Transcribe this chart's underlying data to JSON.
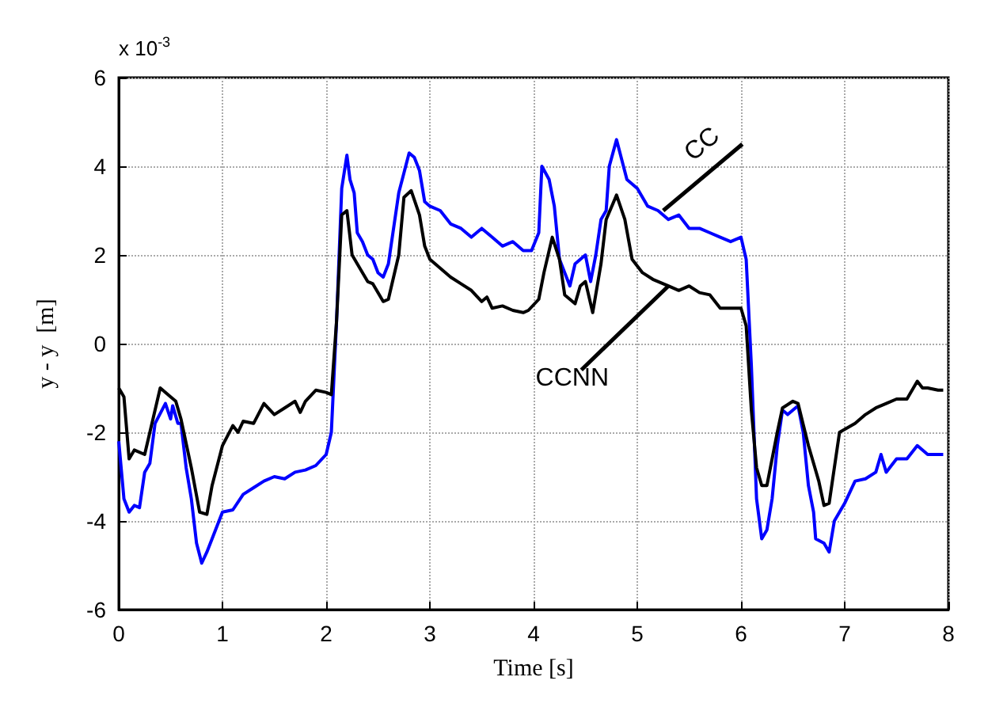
{
  "chart_data": {
    "type": "line",
    "xlabel": "Time [s]",
    "ylabel": "y - y  [m]",
    "xlim": [
      0,
      8
    ],
    "xticks": [
      0,
      1,
      2,
      3,
      4,
      5,
      6,
      7,
      8
    ],
    "ylim": [
      -6,
      6
    ],
    "yticks": [
      -6,
      -4,
      -2,
      0,
      2,
      4,
      6
    ],
    "grid": true,
    "marker": "none",
    "line_style": "solid",
    "annotations": [
      "x 10$^{-3}$",
      {
        "text": "CC",
        "x": 5.25,
        "y": 3.0
      },
      {
        "text": "CCNN",
        "x": 5.3,
        "y": 1.3
      }
    ],
    "series": [
      {
        "color": "#0000ff",
        "x": [
          0,
          0.05,
          0.1,
          0.15,
          0.2,
          0.25,
          0.3,
          0.35,
          0.45,
          0.5,
          0.52,
          0.57,
          0.6,
          0.65,
          0.7,
          0.75,
          0.8,
          0.85,
          0.9,
          1.0,
          1.1,
          1.2,
          1.3,
          1.4,
          1.5,
          1.6,
          1.7,
          1.8,
          1.9,
          2.0,
          2.05,
          2.1,
          2.15,
          2.2,
          2.23,
          2.27,
          2.3,
          2.35,
          2.4,
          2.45,
          2.5,
          2.55,
          2.6,
          2.7,
          2.8,
          2.85,
          2.9,
          2.95,
          3.0,
          3.1,
          3.2,
          3.3,
          3.4,
          3.5,
          3.6,
          3.7,
          3.8,
          3.9,
          3.98,
          4.05,
          4.08,
          4.15,
          4.2,
          4.25,
          4.35,
          4.4,
          4.5,
          4.55,
          4.6,
          4.65,
          4.7,
          4.73,
          4.8,
          4.9,
          5.0,
          5.1,
          5.2,
          5.3,
          5.4,
          5.5,
          5.6,
          5.7,
          5.8,
          5.9,
          6.0,
          6.05,
          6.1,
          6.15,
          6.2,
          6.25,
          6.3,
          6.35,
          6.4,
          6.45,
          6.55,
          6.6,
          6.65,
          6.7,
          6.72,
          6.8,
          6.85,
          6.9,
          7.0,
          7.1,
          7.2,
          7.3,
          7.35,
          7.4,
          7.5,
          7.6,
          7.7,
          7.8,
          7.9,
          7.95
        ],
        "values": [
          -2.2,
          -3.5,
          -3.8,
          -3.65,
          -3.7,
          -2.9,
          -2.7,
          -1.8,
          -1.35,
          -1.7,
          -1.4,
          -1.8,
          -1.8,
          -2.8,
          -3.5,
          -4.5,
          -4.95,
          -4.7,
          -4.4,
          -3.8,
          -3.75,
          -3.4,
          -3.25,
          -3.1,
          -3.0,
          -3.05,
          -2.9,
          -2.85,
          -2.75,
          -2.5,
          -2.0,
          0.5,
          3.5,
          4.25,
          3.7,
          3.4,
          2.5,
          2.3,
          2.0,
          1.9,
          1.6,
          1.5,
          1.8,
          3.4,
          4.3,
          4.2,
          3.9,
          3.2,
          3.1,
          3.0,
          2.7,
          2.6,
          2.4,
          2.6,
          2.4,
          2.2,
          2.3,
          2.1,
          2.1,
          2.5,
          4.0,
          3.7,
          3.1,
          1.9,
          1.3,
          1.8,
          2.0,
          1.4,
          2.0,
          2.8,
          3.0,
          4.0,
          4.6,
          3.7,
          3.5,
          3.1,
          3.0,
          2.8,
          2.9,
          2.6,
          2.6,
          2.5,
          2.4,
          2.3,
          2.4,
          1.9,
          -0.5,
          -3.5,
          -4.4,
          -4.2,
          -3.5,
          -2.3,
          -1.5,
          -1.6,
          -1.4,
          -2.0,
          -3.2,
          -3.8,
          -4.4,
          -4.5,
          -4.7,
          -4.0,
          -3.6,
          -3.1,
          -3.05,
          -2.9,
          -2.5,
          -2.9,
          -2.6,
          -2.6,
          -2.3,
          -2.5,
          -2.5,
          -2.5
        ]
      },
      {
        "color": "#000000",
        "x": [
          0,
          0.05,
          0.1,
          0.15,
          0.25,
          0.3,
          0.4,
          0.5,
          0.55,
          0.6,
          0.7,
          0.78,
          0.85,
          0.9,
          1.0,
          1.1,
          1.15,
          1.2,
          1.3,
          1.4,
          1.5,
          1.6,
          1.7,
          1.75,
          1.8,
          1.9,
          2.0,
          2.05,
          2.1,
          2.15,
          2.2,
          2.25,
          2.3,
          2.4,
          2.45,
          2.55,
          2.6,
          2.7,
          2.75,
          2.82,
          2.9,
          2.95,
          3.0,
          3.1,
          3.2,
          3.3,
          3.4,
          3.5,
          3.55,
          3.6,
          3.7,
          3.8,
          3.9,
          3.95,
          4.05,
          4.1,
          4.18,
          4.25,
          4.3,
          4.4,
          4.45,
          4.5,
          4.57,
          4.65,
          4.7,
          4.8,
          4.88,
          4.95,
          5.05,
          5.15,
          5.3,
          5.4,
          5.5,
          5.6,
          5.7,
          5.8,
          5.9,
          6.0,
          6.05,
          6.1,
          6.15,
          6.2,
          6.25,
          6.35,
          6.4,
          6.5,
          6.55,
          6.65,
          6.75,
          6.8,
          6.85,
          6.95,
          7.1,
          7.2,
          7.3,
          7.4,
          7.5,
          7.6,
          7.7,
          7.75,
          7.8,
          7.9,
          7.95
        ],
        "values": [
          -1.0,
          -1.2,
          -2.6,
          -2.4,
          -2.5,
          -2.0,
          -1.0,
          -1.2,
          -1.3,
          -1.7,
          -2.8,
          -3.8,
          -3.85,
          -3.2,
          -2.3,
          -1.85,
          -2.0,
          -1.75,
          -1.8,
          -1.35,
          -1.6,
          -1.45,
          -1.3,
          -1.55,
          -1.3,
          -1.05,
          -1.1,
          -1.15,
          0.5,
          2.9,
          3.0,
          2.0,
          1.8,
          1.4,
          1.35,
          0.95,
          1.0,
          2.0,
          3.3,
          3.45,
          2.9,
          2.2,
          1.9,
          1.7,
          1.5,
          1.35,
          1.2,
          0.95,
          1.05,
          0.8,
          0.85,
          0.75,
          0.7,
          0.75,
          1.0,
          1.6,
          2.4,
          1.9,
          1.1,
          0.9,
          1.3,
          1.4,
          0.7,
          1.8,
          2.8,
          3.35,
          2.8,
          1.9,
          1.6,
          1.45,
          1.3,
          1.2,
          1.3,
          1.15,
          1.1,
          0.8,
          0.8,
          0.8,
          0.4,
          -1.5,
          -2.8,
          -3.2,
          -3.2,
          -2.0,
          -1.45,
          -1.3,
          -1.35,
          -2.3,
          -3.1,
          -3.65,
          -3.6,
          -2.0,
          -1.8,
          -1.6,
          -1.45,
          -1.35,
          -1.25,
          -1.25,
          -0.85,
          -1.0,
          -1.0,
          -1.05,
          -1.05
        ]
      }
    ]
  }
}
